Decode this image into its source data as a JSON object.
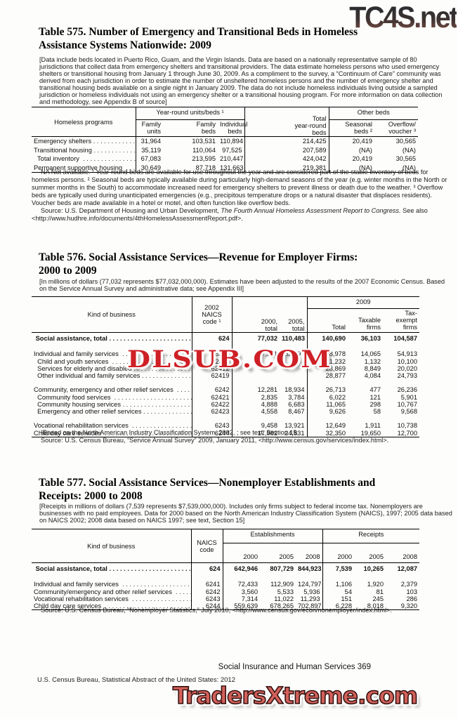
{
  "ui": {
    "leader": " . . . . . . . . . . . . . . . . . . . . . . . . . . . . . . . . . . . . . . . . . . . . . . . . . . . . . . . . . . . ."
  },
  "watermarks": {
    "top": "TC4S.net",
    "middle": "DLSUB.COM",
    "bottom": "TradersXtreme.com",
    "red": "#ce2026",
    "salmon": "#d2605a"
  },
  "footer": {
    "right": "Social Insurance and Human Services 369",
    "left": "U.S. Census Bureau, Statistical Abstract of the United States: 2012"
  },
  "table575": {
    "title_lines": [
      "Table 575. Number of Emergency and Transitional Beds in Homeless",
      "Assistance Systems Nationwide: 2009"
    ],
    "intro": "[Data include beds located in Puerto Rico, Guam, and the Virgin Islands. Data are based on a nationally representative sample of 80 jurisdictions that collect data from emergency shelters and transitional providers. The data estimate homeless persons who used emergency shelters or transitional housing from January 1 through June 30, 2009. As a compliment to the survey, a “Continuum of Care” community was derived from each jurisdiction in order to estimate the number of unsheltered homeless persons and the number of emergency shelter and transitional housing beds available on a single night in January 2009. The data do not include homeless individuals living outside a sampled jurisdiction or homeless individuals not using an emergency shelter or a transitional housing program. For more information on data collection and methodology, see Appendix B of source]",
    "header": {
      "label": "Homeless programs",
      "group1": "Year-round units/beds ¹",
      "total": "Total\nyear-round\nbeds",
      "group2": "Other beds",
      "c1": "Family\nunits",
      "c2": "Family\nbeds",
      "c3": "Individual\nbeds",
      "c5": "Seasonal\nbeds ²",
      "c6": "Overflow/\nvoucher ³"
    },
    "rows": [
      {
        "label": "Emergency shelters",
        "cells": [
          "31,964",
          "103,531",
          "110,894",
          "214,425",
          "20,419",
          "30,565"
        ]
      },
      {
        "label": "Transitional housing",
        "cells": [
          "35,119",
          "110,064",
          "97,525",
          "207,589",
          "(NA)",
          "(NA)"
        ]
      },
      {
        "label": "  Total inventory ",
        "cells": [
          "67,083",
          "213,595",
          "210,447",
          "424,042",
          "20,419",
          "30,565"
        ]
      },
      {
        "label": "Permanent supportive housing ",
        "cells": [
          "30,649",
          "87,718",
          "131,663",
          "219,381",
          "(NA)",
          "(NA)"
        ]
      }
    ],
    "note": "NA Not available. ¹ Year-round beds are available for use throughout the year and are considered part of the stable inventory of beds for homeless persons. ² Seasonal beds are typically available during particularly high-demand seasons of the year (e.g. winter months in the North or summer months in the South) to accommodate increased need for emergency shelters to prevent illness or death due to the weather. ³ Overflow beds are typically used during unanticipated emergencies (e.g., precipitous temperature drops or a natural disaster that displaces residents). Voucher beds are made available in a hotel or motel, and often function like overflow beds.",
    "source_prefix": "Source: U.S. Department of Housing and Urban Development, ",
    "source_italic": "The Fourth Annual Homeless Assessment Report to Congress.",
    "source_suffix": " See also <http://www.hudhre.info/documents/4thHomelessAssessmentReport.pdf>."
  },
  "table576": {
    "title_lines": [
      "Table 576. Social Assistance Services—Revenue for Employer Firms:",
      "2000 to 2009"
    ],
    "intro": "[In millions of dollars (77,032 represents $77,032,000,000). Estimates have been adjusted to the results of the 2007 Economic Census. Based on the Service Annual Survey and administrative data; see Appendix III]",
    "header": {
      "label": "Kind of business",
      "naics": "2002\nNAICS\ncode ¹",
      "y2000": "2000,\ntotal",
      "y2005": "2005,\ntotal",
      "group": "2009",
      "total": "Total",
      "taxable": "Taxable\nfirms",
      "exempt": "Tax-exempt\nfirms"
    },
    "rows": [
      {
        "bold": true,
        "label": " Social assistance, total",
        "cells": [
          "624",
          "77,032",
          "110,483",
          "140,690",
          "36,103",
          "104,587"
        ]
      },
      {
        "spacer": true
      },
      {
        "label": "Individual and family services ",
        "cells": [
          "6241",
          "37,311",
          "52,797",
          "68,978",
          "14,065",
          "54,913"
        ]
      },
      {
        "label": "  Child and youth services ",
        "cells": [
          "62411",
          "",
          "",
          "11,232",
          "1,132",
          "10,100"
        ]
      },
      {
        "label": "  Services for elderly and disabled",
        "cells": [
          "62412",
          "",
          "",
          "28,869",
          "8,849",
          "20,020"
        ]
      },
      {
        "label": "  Other individual and family services",
        "cells": [
          "62419",
          "",
          "",
          "28,877",
          "4,084",
          "24,793"
        ]
      },
      {
        "spacer": true
      },
      {
        "label": "Community, emergency and other relief services ",
        "cells": [
          "6242",
          "12,281",
          "18,934",
          "26,713",
          "477",
          "26,236"
        ]
      },
      {
        "label": "  Community food services ",
        "cells": [
          "62421",
          "2,835",
          "3,784",
          "6,022",
          "121",
          "5,901"
        ]
      },
      {
        "label": "  Community housing services",
        "cells": [
          "62422",
          "4,888",
          "6,683",
          "11,065",
          "298",
          "10,767"
        ]
      },
      {
        "label": "  Emergency and other relief services",
        "cells": [
          "62423",
          "4,558",
          "8,467",
          "9,626",
          "58",
          "9,568"
        ]
      },
      {
        "spacer": true
      },
      {
        "label": "Vocational rehabilitation services ",
        "cells": [
          "6243",
          "9,458",
          "13,921",
          "12,649",
          "1,911",
          "10,738"
        ]
      },
      {
        "label": "Child day care services ",
        "cells": [
          "6244",
          "17,982",
          "24,831",
          "32,350",
          "19,650",
          "12,700"
        ]
      }
    ],
    "footnote": "¹Based on the North American Industry Classification System, 2002, ; see text, Section 15.",
    "source": "Source: U.S. Census Bureau, “Service Annual Survey” 2009, January 2011, <http://www.census.gov/services/index.html>."
  },
  "table577": {
    "title_lines": [
      "Table 577. Social Assistance Services—Nonemployer Establishments and",
      "Receipts: 2000 to 2008"
    ],
    "intro": "[Receipts in millions of dollars (7,539 represents $7,539,000,000). Includes only firms subject to federal income tax. Nonemployers are businesses with no paid employees. Data for 2000 based on the North American Industry Classification System (NAICS), 1997; 2005 data based on NAICS 2002; 2008 data based on NAICS 1997; see text, Section 15]",
    "header": {
      "label": "Kind of business",
      "naics": "NAICS\ncode",
      "group1": "Establishments",
      "group2": "Receipts",
      "e2000": "2000",
      "e2005": "2005",
      "e2008": "2008",
      "r2000": "2000",
      "r2005": "2005",
      "r2008": "2008"
    },
    "rows": [
      {
        "bold": true,
        "label": " Social assistance, total",
        "cells": [
          "624",
          "642,946",
          "807,729",
          "844,923",
          "7,539",
          "10,265",
          "12,087"
        ]
      },
      {
        "spacer": true
      },
      {
        "label": "Individual and family services ",
        "cells": [
          "6241",
          "72,433",
          "112,909",
          "124,797",
          "1,106",
          "1,920",
          "2,379"
        ]
      },
      {
        "label": "Community/emergency and other relief services ",
        "cells": [
          "6242",
          "3,560",
          "5,533",
          "5,936",
          "54",
          "81",
          "103"
        ]
      },
      {
        "label": "Vocational rehabilitation services ",
        "cells": [
          "6243",
          "7,314",
          "11,022",
          "11,293",
          "151",
          "245",
          "286"
        ]
      },
      {
        "label": "Child day care services ",
        "cells": [
          "6244",
          "559,639",
          "678,265",
          "702,897",
          "6,228",
          "8,018",
          "9,320"
        ]
      }
    ],
    "source": "Source: U.S. Census Bureau, “Nonemployer Statistics,” July 2010, <http://www.census.gov/econ/nonemployer/index.html>."
  }
}
